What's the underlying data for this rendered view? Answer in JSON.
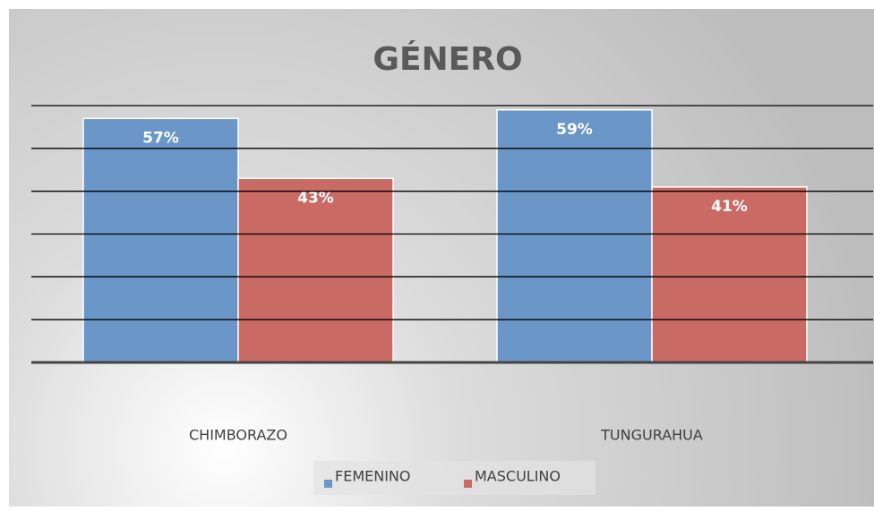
{
  "chart_data": {
    "type": "bar",
    "title": "GÉNERO",
    "categories": [
      "CHIMBORAZO",
      "TUNGURAHUA"
    ],
    "series": [
      {
        "name": "FEMENINO",
        "color": "#6a96c8",
        "values": [
          57,
          59
        ],
        "value_labels": [
          "57%",
          "59%"
        ]
      },
      {
        "name": "MASCULINO",
        "color": "#c96a64",
        "values": [
          43,
          41
        ],
        "value_labels": [
          "43%",
          "41%"
        ]
      }
    ],
    "ylim": [
      0,
      60
    ],
    "yticks": [
      0,
      10,
      20,
      30,
      40,
      50,
      60
    ],
    "grid": true,
    "legend": "bottom"
  }
}
